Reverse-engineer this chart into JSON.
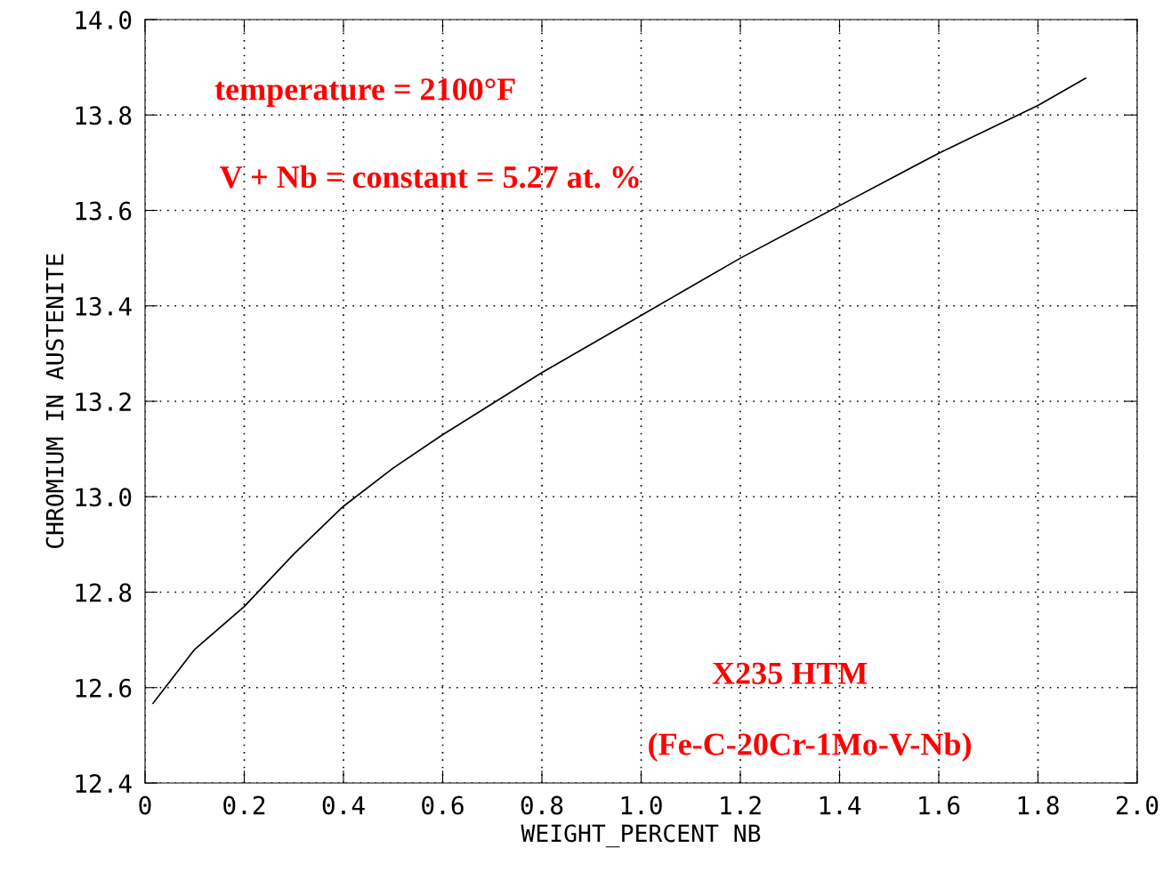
{
  "chart_data": {
    "type": "line",
    "xlabel": "WEIGHT_PERCENT NB",
    "ylabel": "CHROMIUM IN AUSTENITE",
    "x": [
      0.016,
      0.1,
      0.2,
      0.3,
      0.4,
      0.5,
      0.6,
      0.8,
      1.0,
      1.2,
      1.4,
      1.6,
      1.8,
      1.896
    ],
    "series": [
      {
        "color": "#000000",
        "values": [
          12.567,
          12.68,
          12.77,
          12.88,
          12.98,
          13.06,
          13.13,
          13.26,
          13.38,
          13.5,
          13.61,
          13.72,
          13.82,
          13.877
        ]
      }
    ],
    "xlim": [
      0,
      2.0
    ],
    "ylim": [
      12.4,
      14.0
    ],
    "xticks": [
      0,
      {
        "value": 0.2,
        "label": "0.2"
      },
      {
        "value": 0.4,
        "label": "0.4"
      },
      {
        "value": 0.6,
        "label": "0.6"
      },
      {
        "value": 0.8,
        "label": "0.8"
      },
      {
        "value": 1.0,
        "label": "1.0"
      },
      {
        "value": 1.2,
        "label": "1.2"
      },
      {
        "value": 1.4,
        "label": "1.4"
      },
      {
        "value": 1.6,
        "label": "1.6"
      },
      {
        "value": 1.8,
        "label": "1.8"
      },
      {
        "value": 2.0,
        "label": "2.0"
      }
    ],
    "yticks": [
      {
        "value": 12.4,
        "label": "12.4"
      },
      {
        "value": 12.6,
        "label": "12.6"
      },
      {
        "value": 12.8,
        "label": "12.8"
      },
      {
        "value": 13.0,
        "label": "13.0"
      },
      {
        "value": 13.2,
        "label": "13.2"
      },
      {
        "value": 13.4,
        "label": "13.4"
      },
      {
        "value": 13.6,
        "label": "13.6"
      },
      {
        "value": 13.8,
        "label": "13.8"
      },
      {
        "value": 14.0,
        "label": "14.0"
      }
    ],
    "grid": true,
    "marker": "none",
    "line_style": "solid",
    "annotations": [
      "temperature = 2100°F",
      "V + Nb = constant = 5.27 at. %",
      "X235 HTM",
      "(Fe-C-20Cr-1Mo-V-Nb)"
    ]
  }
}
